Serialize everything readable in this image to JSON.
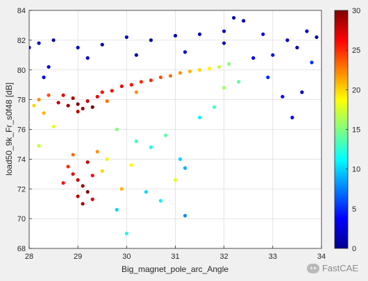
{
  "chart_data": {
    "type": "scatter",
    "title": "",
    "xlabel": "Big_magnet_pole_arc_Angle",
    "ylabel": "load50_9k_Fr_s0f48 [dB]",
    "xlim": [
      28,
      34
    ],
    "ylim": [
      68,
      84
    ],
    "xticks": [
      "28",
      "29",
      "30",
      "31",
      "32",
      "33",
      "34"
    ],
    "yticks": [
      "68",
      "70",
      "72",
      "74",
      "76",
      "78",
      "80",
      "82",
      "84"
    ],
    "grid": true,
    "colormap": "jet",
    "colorbar": {
      "range": [
        0,
        30
      ],
      "ticks": [
        "0",
        "5",
        "10",
        "15",
        "20",
        "25",
        "30"
      ]
    },
    "series": [
      {
        "description": "dense high-value core",
        "points": [
          [
            28.6,
            77.8,
            28
          ],
          [
            28.8,
            77.6,
            29
          ],
          [
            29.0,
            77.7,
            30
          ],
          [
            29.1,
            77.4,
            29
          ],
          [
            29.2,
            77.9,
            28
          ],
          [
            29.4,
            78.2,
            27
          ],
          [
            28.9,
            78.1,
            29
          ],
          [
            29.0,
            77.2,
            28
          ],
          [
            29.3,
            77.5,
            30
          ],
          [
            28.7,
            78.3,
            27
          ],
          [
            29.5,
            78.5,
            26
          ],
          [
            29.7,
            78.6,
            26
          ],
          [
            29.9,
            78.9,
            27
          ],
          [
            30.1,
            79.0,
            26
          ],
          [
            30.3,
            79.2,
            25
          ],
          [
            30.5,
            79.3,
            25
          ],
          [
            30.7,
            79.5,
            24
          ],
          [
            30.9,
            79.6,
            23
          ],
          [
            31.1,
            79.8,
            22
          ],
          [
            31.3,
            79.9,
            21
          ],
          [
            31.5,
            80.0,
            20
          ],
          [
            31.7,
            80.1,
            19
          ],
          [
            31.9,
            80.2,
            17
          ],
          [
            32.1,
            80.4,
            15
          ],
          [
            28.2,
            78.0,
            22
          ],
          [
            28.4,
            78.3,
            24
          ],
          [
            28.1,
            77.6,
            20
          ],
          [
            28.3,
            77.1,
            21
          ],
          [
            29.6,
            77.9,
            23
          ],
          [
            30.2,
            78.5,
            22
          ]
        ]
      },
      {
        "description": "low-angle cluster near 29",
        "points": [
          [
            28.8,
            73.5,
            25
          ],
          [
            28.9,
            73.0,
            27
          ],
          [
            29.0,
            72.6,
            28
          ],
          [
            29.1,
            72.2,
            29
          ],
          [
            29.2,
            73.8,
            28
          ],
          [
            29.3,
            72.9,
            26
          ],
          [
            29.0,
            71.5,
            28
          ],
          [
            29.1,
            71.0,
            29
          ],
          [
            28.9,
            74.3,
            23
          ],
          [
            29.4,
            74.5,
            22
          ],
          [
            29.2,
            71.8,
            30
          ],
          [
            28.7,
            72.4,
            26
          ],
          [
            29.5,
            73.2,
            20
          ],
          [
            29.6,
            74.0,
            18
          ],
          [
            29.3,
            71.3,
            27
          ]
        ]
      },
      {
        "description": "upper band low values",
        "points": [
          [
            28.2,
            81.8,
            2
          ],
          [
            28.5,
            82.0,
            1
          ],
          [
            29.0,
            81.5,
            2
          ],
          [
            29.5,
            81.7,
            1
          ],
          [
            30.0,
            82.2,
            2
          ],
          [
            30.5,
            82.0,
            1
          ],
          [
            31.0,
            82.3,
            2
          ],
          [
            31.5,
            82.4,
            1
          ],
          [
            32.0,
            82.6,
            2
          ],
          [
            32.2,
            83.5,
            1
          ],
          [
            32.4,
            83.3,
            1
          ],
          [
            32.8,
            82.4,
            3
          ],
          [
            33.0,
            81.0,
            4
          ],
          [
            33.3,
            82.0,
            2
          ],
          [
            33.5,
            81.5,
            1
          ],
          [
            33.7,
            82.6,
            2
          ],
          [
            33.9,
            82.2,
            1
          ],
          [
            33.8,
            80.5,
            5
          ],
          [
            33.6,
            78.5,
            2
          ],
          [
            33.4,
            76.8,
            4
          ],
          [
            32.6,
            80.8,
            3
          ],
          [
            32.0,
            81.8,
            2
          ],
          [
            31.2,
            81.2,
            3
          ],
          [
            30.2,
            81.0,
            1
          ],
          [
            29.2,
            80.8,
            2
          ],
          [
            28.4,
            80.2,
            3
          ],
          [
            28.0,
            81.5,
            2
          ],
          [
            28.3,
            79.5,
            3
          ],
          [
            32.9,
            79.5,
            5
          ],
          [
            33.2,
            78.2,
            4
          ]
        ]
      },
      {
        "description": "mid values",
        "points": [
          [
            29.8,
            76.0,
            15
          ],
          [
            30.2,
            75.2,
            13
          ],
          [
            30.5,
            74.8,
            12
          ],
          [
            30.8,
            75.6,
            14
          ],
          [
            31.1,
            74.0,
            10
          ],
          [
            31.2,
            73.4,
            9
          ],
          [
            30.7,
            71.2,
            11
          ],
          [
            30.4,
            71.8,
            10
          ],
          [
            31.2,
            70.2,
            8
          ],
          [
            30.0,
            69.0,
            12
          ],
          [
            29.8,
            70.6,
            10
          ],
          [
            31.5,
            76.8,
            11
          ],
          [
            31.8,
            77.5,
            13
          ],
          [
            32.0,
            78.8,
            16
          ],
          [
            32.3,
            79.2,
            14
          ],
          [
            31.0,
            72.6,
            18
          ],
          [
            30.1,
            73.6,
            19
          ],
          [
            29.9,
            72.0,
            21
          ],
          [
            28.5,
            76.2,
            18
          ],
          [
            28.2,
            74.9,
            17
          ]
        ]
      }
    ]
  },
  "watermark": {
    "text": "FastCAE",
    "icon": "wechat-icon"
  }
}
